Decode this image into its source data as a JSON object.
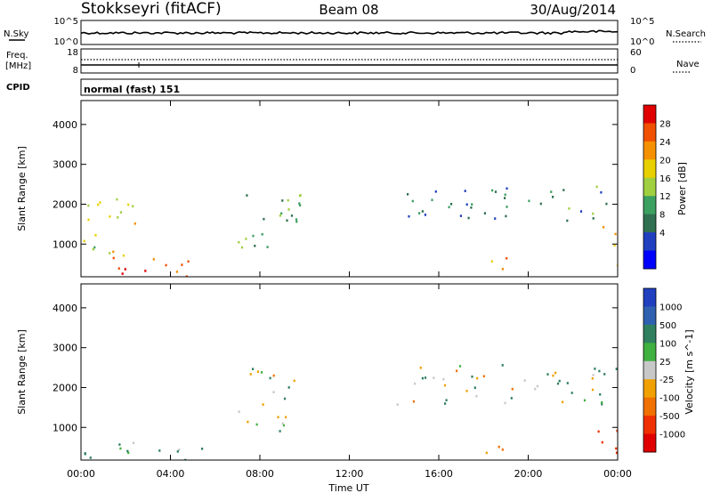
{
  "header": {
    "station": "Stokkseyri (fitACF)",
    "beam": "Beam 08",
    "date": "30/Aug/2014"
  },
  "top_panels": {
    "nsky_label": "N.Sky",
    "nsky_ticks": [
      "10^5",
      "10^0"
    ],
    "nsearch_label": "N.Search",
    "nsearch_ticks": [
      "10^5",
      "10^0"
    ],
    "freq_label": "Freq.",
    "freq_unit": "[MHz]",
    "freq_ticks": [
      "18",
      "8"
    ],
    "nave_label": "Nave",
    "nave_ticks": [
      "60",
      "0"
    ],
    "cpid_label": "CPID",
    "cpid_value": "normal (fast) 151"
  },
  "chart_data": [
    {
      "type": "heatmap",
      "ylabel": "Slant Range [km]",
      "ylim": [
        180,
        4600
      ],
      "yticks": [
        "4000",
        "3000",
        "2000",
        "1000"
      ],
      "colorbar": {
        "label": "Power [dB]",
        "ticks": [
          "28",
          "24",
          "20",
          "16",
          "12",
          "8",
          "4"
        ],
        "colors": [
          "#e00000",
          "#f05000",
          "#f59000",
          "#e8d000",
          "#a0d040",
          "#3ca060",
          "#307050",
          "#2040c0",
          "#0000ff"
        ]
      },
      "regions": [
        {
          "t0": 0.0,
          "t1": 4.8,
          "r0": 200,
          "r1": 700,
          "dB": 26
        },
        {
          "t0": 0.0,
          "t1": 2.5,
          "r0": 700,
          "r1": 2300,
          "dB": 18
        },
        {
          "t0": 7.0,
          "t1": 9.8,
          "r0": 900,
          "r1": 2600,
          "dB": 12
        },
        {
          "t0": 14.5,
          "t1": 23.8,
          "r0": 1600,
          "r1": 2500,
          "dB": 10
        },
        {
          "t0": 17.8,
          "t1": 19.5,
          "r0": 300,
          "r1": 700,
          "dB": 24
        },
        {
          "t0": 23.3,
          "t1": 24.0,
          "r0": 300,
          "r1": 1500,
          "dB": 24
        }
      ]
    },
    {
      "type": "heatmap",
      "xlabel": "Time UT",
      "ylabel": "Slant Range [km]",
      "ylim": [
        180,
        4600
      ],
      "yticks": [
        "4000",
        "3000",
        "2000",
        "1000"
      ],
      "xticks": [
        "00:00",
        "04:00",
        "08:00",
        "12:00",
        "16:00",
        "20:00",
        "00:00"
      ],
      "colorbar": {
        "label": "Velocity [m s^-1]",
        "ticks": [
          "1000",
          "500",
          "100",
          "25",
          "-25",
          "-100",
          "-500",
          "-1000"
        ],
        "colors": [
          "#2040c0",
          "#3060b0",
          "#308060",
          "#40b040",
          "#c8c8c8",
          "#f0a000",
          "#f07000",
          "#f03000",
          "#e00000"
        ]
      },
      "regions": [
        {
          "t0": 0.0,
          "t1": 5.5,
          "r0": 200,
          "r1": 700,
          "v": 150
        },
        {
          "t0": 7.0,
          "t1": 9.5,
          "r0": 900,
          "r1": 2600,
          "v": 0
        },
        {
          "t0": 14.0,
          "t1": 24.0,
          "r0": 1600,
          "r1": 2600,
          "v": 0
        },
        {
          "t0": 17.8,
          "t1": 19.5,
          "r0": 300,
          "r1": 650,
          "v": -120
        },
        {
          "t0": 23.0,
          "t1": 24.0,
          "r0": 300,
          "r1": 1500,
          "v": -600
        }
      ]
    }
  ]
}
